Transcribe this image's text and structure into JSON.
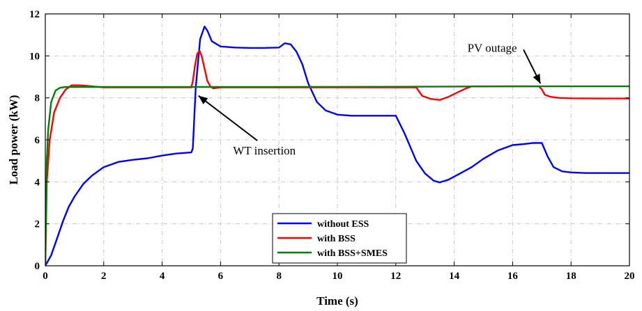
{
  "chart_data": {
    "type": "line",
    "title": "",
    "xlabel": "Time (s)",
    "ylabel": "Load power (kW)",
    "xlim": [
      0,
      20
    ],
    "ylim": [
      0,
      12
    ],
    "xticks": [
      0,
      2,
      4,
      6,
      8,
      10,
      12,
      14,
      16,
      18,
      20
    ],
    "yticks": [
      0,
      2,
      4,
      6,
      8,
      10,
      12
    ],
    "grid": true,
    "legend_position": "bottom-center",
    "series": [
      {
        "name": "without ESS",
        "color": "#0000ff",
        "x": [
          0,
          0.2,
          0.4,
          0.6,
          0.8,
          1.0,
          1.3,
          1.6,
          2.0,
          2.5,
          3.0,
          3.5,
          4.0,
          4.5,
          5.0,
          5.05,
          5.15,
          5.3,
          5.45,
          5.55,
          5.7,
          6.0,
          6.5,
          7.0,
          7.5,
          8.0,
          8.2,
          8.4,
          8.6,
          8.8,
          9.0,
          9.3,
          9.6,
          10.0,
          10.5,
          11.0,
          11.5,
          12.0,
          12.3,
          12.7,
          13.0,
          13.3,
          13.5,
          13.8,
          14.2,
          14.6,
          15.0,
          15.5,
          16.0,
          16.4,
          16.7,
          17.0,
          17.2,
          17.4,
          17.7,
          18.0,
          18.5,
          19.0,
          20.0
        ],
        "y": [
          0,
          0.5,
          1.3,
          2.1,
          2.8,
          3.3,
          3.9,
          4.3,
          4.7,
          4.95,
          5.05,
          5.12,
          5.25,
          5.35,
          5.4,
          5.6,
          8.5,
          10.8,
          11.4,
          11.2,
          10.7,
          10.45,
          10.4,
          10.38,
          10.38,
          10.4,
          10.6,
          10.55,
          10.2,
          9.6,
          8.7,
          7.8,
          7.4,
          7.2,
          7.15,
          7.15,
          7.15,
          7.15,
          6.3,
          5.0,
          4.4,
          4.05,
          3.97,
          4.1,
          4.4,
          4.7,
          5.1,
          5.5,
          5.75,
          5.8,
          5.85,
          5.85,
          5.2,
          4.7,
          4.5,
          4.45,
          4.42,
          4.42,
          4.42
        ]
      },
      {
        "name": "with BSS",
        "color": "#ff0000",
        "x": [
          0,
          0.05,
          0.15,
          0.3,
          0.5,
          0.7,
          0.9,
          1.2,
          1.6,
          2.0,
          3.0,
          4.0,
          5.0,
          5.05,
          5.12,
          5.2,
          5.28,
          5.35,
          5.45,
          5.55,
          5.65,
          5.75,
          6.0,
          7.0,
          8.0,
          9.0,
          10.0,
          11.0,
          12.0,
          12.7,
          12.9,
          13.2,
          13.5,
          13.8,
          14.1,
          14.4,
          14.6,
          15.0,
          16.0,
          16.9,
          17.0,
          17.1,
          17.3,
          17.6,
          18.0,
          19.0,
          20.0
        ],
        "y": [
          0,
          4.0,
          6.0,
          7.3,
          8.0,
          8.4,
          8.6,
          8.6,
          8.55,
          8.5,
          8.5,
          8.5,
          8.5,
          8.8,
          9.5,
          10.1,
          10.25,
          10.0,
          9.4,
          8.8,
          8.55,
          8.45,
          8.5,
          8.5,
          8.5,
          8.5,
          8.5,
          8.5,
          8.5,
          8.5,
          8.1,
          7.95,
          7.9,
          8.05,
          8.25,
          8.45,
          8.55,
          8.55,
          8.55,
          8.55,
          8.4,
          8.15,
          8.05,
          8.0,
          7.98,
          7.97,
          7.97
        ]
      },
      {
        "name": "with BSS+SMES",
        "color": "#008000",
        "x": [
          0,
          0.05,
          0.1,
          0.2,
          0.35,
          0.5,
          0.7,
          1.0,
          2.0,
          5.0,
          8.0,
          12.0,
          16.0,
          20.0
        ],
        "y": [
          0,
          5.0,
          6.5,
          7.8,
          8.35,
          8.48,
          8.52,
          8.52,
          8.52,
          8.52,
          8.52,
          8.53,
          8.55,
          8.55
        ]
      }
    ],
    "annotations": [
      {
        "text": "WT insertion",
        "point": [
          5.1,
          8.5
        ],
        "text_at": [
          7.5,
          5.3
        ]
      },
      {
        "text": "PV outage",
        "point": [
          17.0,
          8.55
        ],
        "text_at": [
          15.3,
          10.2
        ]
      }
    ]
  }
}
